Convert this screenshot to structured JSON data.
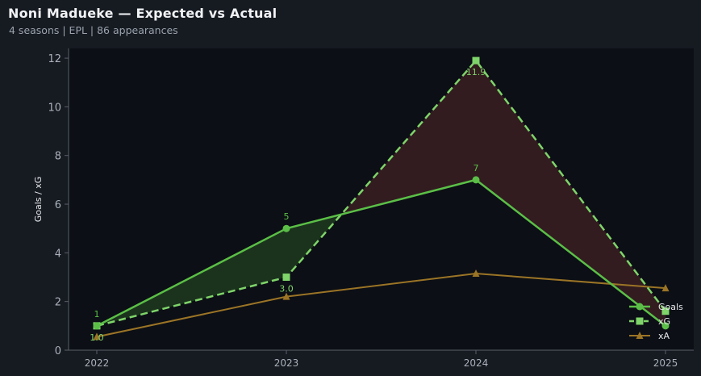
{
  "header": {
    "title": "Noni Madueke — Expected vs Actual",
    "subtitle": "4 seasons | EPL | 86 appearances"
  },
  "chart_data": {
    "type": "line",
    "x": [
      "2022",
      "2023",
      "2024",
      "2025"
    ],
    "ylabel": "Goals / xG",
    "ylim": [
      0,
      12.4
    ],
    "yticks": [
      0,
      2,
      4,
      6,
      8,
      10,
      12
    ],
    "series": [
      {
        "name": "Goals",
        "values": [
          1,
          5,
          7,
          1
        ],
        "labels": [
          "1",
          "5",
          "7",
          ""
        ],
        "color": "#5bbf47",
        "marker": "circle",
        "dash": "solid"
      },
      {
        "name": "xG",
        "values": [
          1.0,
          3.0,
          11.9,
          1.6
        ],
        "labels": [
          "1.0",
          "3.0",
          "11.9",
          ""
        ],
        "color": "#7fd46a",
        "marker": "square",
        "dash": "dashed"
      },
      {
        "name": "xA",
        "values": [
          0.55,
          2.2,
          3.15,
          2.55
        ],
        "labels": [],
        "color": "#9b7426",
        "marker": "triangle",
        "dash": "solid"
      }
    ],
    "fill_colors": {
      "goals_above_xg": "#1e3a1f",
      "xg_above_goals": "#3a1e22"
    },
    "legend": {
      "position": "bottom-right"
    },
    "grid": false
  }
}
